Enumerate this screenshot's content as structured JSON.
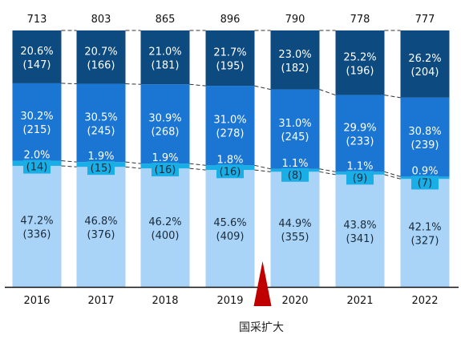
{
  "chart_data": {
    "type": "bar",
    "stacked": true,
    "normalized": true,
    "categories": [
      "2016",
      "2017",
      "2018",
      "2019",
      "2020",
      "2021",
      "2022"
    ],
    "totals": [
      "713",
      "803",
      "865",
      "896",
      "790",
      "778",
      "777"
    ],
    "series": [
      {
        "color": "#a9d4f7",
        "values": [
          47.2,
          46.8,
          46.2,
          45.6,
          44.9,
          43.8,
          42.1
        ],
        "labels": [
          "47.2%",
          "46.8%",
          "46.2%",
          "45.6%",
          "44.9%",
          "43.8%",
          "42.1%"
        ],
        "counts": [
          "(336)",
          "(376)",
          "(400)",
          "(409)",
          "(355)",
          "(341)",
          "(327)"
        ]
      },
      {
        "color": "#19aee6",
        "values": [
          2.0,
          1.9,
          1.9,
          1.8,
          1.1,
          1.1,
          0.9
        ],
        "labels": [
          "2.0%",
          "1.9%",
          "1.9%",
          "1.8%",
          "1.1%",
          "1.1%",
          "0.9%"
        ],
        "counts": [
          "(14)",
          "(15)",
          "(16)",
          "(16)",
          "(8)",
          "(9)",
          "(7)"
        ]
      },
      {
        "color": "#1a76d2",
        "values": [
          30.2,
          30.5,
          30.9,
          31.0,
          31.0,
          29.9,
          30.8
        ],
        "labels": [
          "30.2%",
          "30.5%",
          "30.9%",
          "31.0%",
          "31.0%",
          "29.9%",
          "30.8%"
        ],
        "counts": [
          "(215)",
          "(245)",
          "(268)",
          "(278)",
          "(245)",
          "(233)",
          "(239)"
        ]
      },
      {
        "color": "#0d4a80",
        "values": [
          20.6,
          20.7,
          21.0,
          21.7,
          23.0,
          25.2,
          26.2
        ],
        "labels": [
          "20.6%",
          "20.7%",
          "21.0%",
          "21.7%",
          "23.0%",
          "25.2%",
          "26.2%"
        ],
        "counts": [
          "(147)",
          "(166)",
          "(181)",
          "(195)",
          "(182)",
          "(196)",
          "(204)"
        ]
      }
    ],
    "ylim": [
      0,
      100
    ],
    "grid": false,
    "annotation": {
      "text": "国采扩大",
      "position": "between-2019-2020",
      "marker_color": "#c00000"
    }
  }
}
